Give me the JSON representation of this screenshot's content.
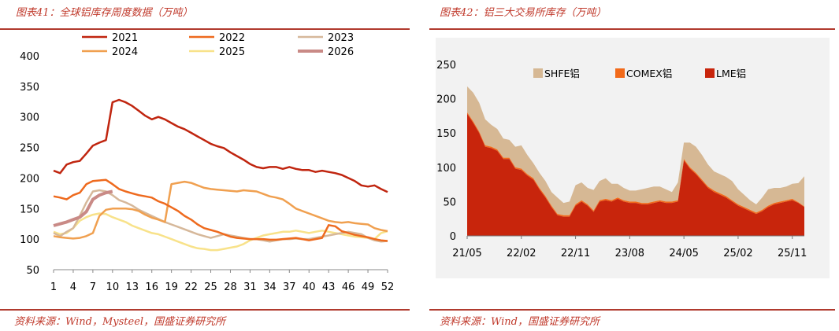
{
  "left": {
    "caption": "图表41：全球铝库存周度数据（万吨）",
    "source": "资料来源：Wind，Mysteel，国盛证券研究所"
  },
  "right": {
    "caption": "图表42：铝三大交易所库存（万吨）",
    "source": "资料来源：Wind，国盛证券研究所"
  },
  "colors": {
    "y2021": "#c0250f",
    "y2022": "#ee6a1e",
    "y2023": "#d6b89a",
    "y2024": "#f0a050",
    "y2025": "#f8e28a",
    "y2026": "#c98a86",
    "shfe": "#d6b894",
    "comex": "#f26a1a",
    "lme": "#c8250c",
    "rule": "#b03a2e",
    "caption": "#c0392b"
  },
  "chart_data": [
    {
      "type": "line",
      "xlabel": "",
      "ylabel": "",
      "ylim": [
        50,
        400
      ],
      "yticks": [
        "50",
        "100",
        "150",
        "200",
        "250",
        "300",
        "350",
        "400"
      ],
      "xticks": [
        "1",
        "4",
        "7",
        "10",
        "13",
        "16",
        "19",
        "22",
        "25",
        "28",
        "31",
        "34",
        "37",
        "40",
        "43",
        "46",
        "49",
        "52"
      ],
      "xlim": [
        1,
        52
      ],
      "legend": "top",
      "series": [
        {
          "name": "2021",
          "key": "y2021",
          "x": [
            1,
            2,
            3,
            4,
            5,
            6,
            7,
            8,
            9,
            10,
            11,
            12,
            13,
            14,
            15,
            16,
            17,
            18,
            19,
            20,
            21,
            22,
            23,
            24,
            25,
            26,
            27,
            28,
            29,
            30,
            31,
            32,
            33,
            34,
            35,
            36,
            37,
            38,
            39,
            40,
            41,
            42,
            43,
            44,
            45,
            46,
            47,
            48,
            49,
            50,
            51,
            52
          ],
          "values": [
            212,
            208,
            222,
            226,
            228,
            240,
            253,
            258,
            262,
            324,
            328,
            324,
            318,
            310,
            302,
            296,
            300,
            296,
            290,
            284,
            280,
            274,
            268,
            262,
            256,
            252,
            249,
            242,
            236,
            230,
            223,
            218,
            216,
            218,
            218,
            215,
            218,
            215,
            213,
            213,
            210,
            212,
            210,
            208,
            205,
            200,
            195,
            188,
            186,
            188,
            182,
            177
          ]
        },
        {
          "name": "2022",
          "key": "y2022",
          "x": [
            1,
            2,
            3,
            4,
            5,
            6,
            7,
            8,
            9,
            10,
            11,
            12,
            13,
            14,
            15,
            16,
            17,
            18,
            19,
            20,
            21,
            22,
            23,
            24,
            25,
            26,
            27,
            28,
            29,
            30,
            31,
            32,
            33,
            34,
            35,
            36,
            37,
            38,
            39,
            40,
            41,
            42,
            43,
            44,
            45,
            46,
            47,
            48,
            49,
            50,
            51,
            52
          ],
          "values": [
            170,
            168,
            165,
            172,
            176,
            190,
            195,
            196,
            197,
            190,
            182,
            178,
            175,
            172,
            170,
            168,
            162,
            158,
            152,
            146,
            138,
            132,
            124,
            118,
            115,
            112,
            108,
            104,
            102,
            101,
            100,
            100,
            100,
            99,
            99,
            100,
            101,
            102,
            100,
            98,
            100,
            102,
            123,
            121,
            113,
            110,
            107,
            105,
            103,
            100,
            98,
            97
          ]
        },
        {
          "name": "2023",
          "key": "y2023",
          "x": [
            1,
            2,
            3,
            4,
            5,
            6,
            7,
            8,
            9,
            10,
            11,
            12,
            13,
            14,
            15,
            16,
            17,
            18,
            19,
            20,
            21,
            22,
            23,
            24,
            25,
            26,
            27,
            28,
            29,
            30,
            31,
            32,
            33,
            34,
            35,
            36,
            37,
            38,
            39,
            40,
            41,
            42,
            43,
            44,
            45,
            46,
            47,
            48,
            49,
            50,
            51,
            52
          ],
          "values": [
            110,
            105,
            112,
            118,
            138,
            160,
            178,
            180,
            178,
            172,
            164,
            160,
            155,
            148,
            143,
            138,
            133,
            128,
            124,
            120,
            116,
            112,
            108,
            105,
            102,
            105,
            108,
            106,
            104,
            102,
            100,
            100,
            98,
            96,
            98,
            100,
            100,
            101,
            100,
            100,
            102,
            104,
            106,
            108,
            110,
            112,
            110,
            108,
            102,
            98,
            96,
            97
          ]
        },
        {
          "name": "2024",
          "key": "y2024",
          "x": [
            1,
            2,
            3,
            4,
            5,
            6,
            7,
            8,
            9,
            10,
            11,
            12,
            13,
            14,
            15,
            16,
            17,
            18,
            19,
            20,
            21,
            22,
            23,
            24,
            25,
            26,
            27,
            28,
            29,
            30,
            31,
            32,
            33,
            34,
            35,
            36,
            37,
            38,
            39,
            40,
            41,
            42,
            43,
            44,
            45,
            46,
            47,
            48,
            49,
            50,
            51,
            52
          ],
          "values": [
            105,
            103,
            102,
            101,
            102,
            105,
            110,
            138,
            148,
            150,
            150,
            150,
            149,
            146,
            140,
            135,
            132,
            128,
            190,
            192,
            194,
            192,
            188,
            184,
            182,
            181,
            180,
            179,
            178,
            180,
            179,
            178,
            174,
            170,
            168,
            165,
            158,
            150,
            146,
            142,
            138,
            134,
            130,
            128,
            127,
            128,
            126,
            125,
            124,
            118,
            115,
            113
          ]
        },
        {
          "name": "2025",
          "key": "y2025",
          "x": [
            1,
            2,
            3,
            4,
            5,
            6,
            7,
            8,
            9,
            10,
            11,
            12,
            13,
            14,
            15,
            16,
            17,
            18,
            19,
            20,
            21,
            22,
            23,
            24,
            25,
            26,
            27,
            28,
            29,
            30,
            31,
            32,
            33,
            34,
            35,
            36,
            37,
            38,
            39,
            40,
            41,
            42,
            43,
            44,
            45,
            46,
            47,
            48,
            49,
            50,
            51,
            52
          ],
          "values": [
            112,
            108,
            110,
            118,
            130,
            136,
            140,
            142,
            141,
            136,
            132,
            128,
            122,
            118,
            114,
            110,
            108,
            104,
            100,
            96,
            92,
            88,
            85,
            84,
            82,
            82,
            84,
            86,
            88,
            92,
            98,
            102,
            106,
            108,
            110,
            112,
            112,
            114,
            112,
            110,
            112,
            114,
            112,
            110,
            108,
            106,
            104,
            103,
            102,
            100,
            110,
            113
          ]
        },
        {
          "name": "2026",
          "key": "y2026",
          "x": [
            1,
            2,
            3,
            4,
            5,
            6,
            7,
            8,
            9,
            10
          ],
          "values": [
            122,
            125,
            128,
            132,
            136,
            145,
            165,
            172,
            176,
            178
          ]
        }
      ]
    },
    {
      "type": "area",
      "xlabel": "",
      "ylabel": "",
      "ylim": [
        0,
        250
      ],
      "yticks": [
        "0",
        "50",
        "100",
        "150",
        "200",
        "250"
      ],
      "xticks": [
        "21/05",
        "22/02",
        "22/11",
        "23/08",
        "24/05",
        "25/02",
        "25/11"
      ],
      "legend": "top",
      "x": [
        "21/05",
        "21/06",
        "21/07",
        "21/08",
        "21/09",
        "21/10",
        "21/11",
        "21/12",
        "22/01",
        "22/02",
        "22/03",
        "22/04",
        "22/05",
        "22/06",
        "22/07",
        "22/08",
        "22/09",
        "22/10",
        "22/11",
        "22/12",
        "23/01",
        "23/02",
        "23/03",
        "23/04",
        "23/05",
        "23/06",
        "23/07",
        "23/08",
        "23/09",
        "23/10",
        "23/11",
        "23/12",
        "24/01",
        "24/02",
        "24/03",
        "24/04",
        "24/05",
        "24/06",
        "24/07",
        "24/08",
        "24/09",
        "24/10",
        "24/11",
        "24/12",
        "25/01",
        "25/02",
        "25/03",
        "25/04",
        "25/05",
        "25/06",
        "25/07",
        "25/08",
        "25/09",
        "25/10",
        "25/11",
        "25/12",
        "26/01"
      ],
      "series": [
        {
          "name": "LME铝",
          "key": "lme",
          "values": [
            178,
            165,
            150,
            130,
            128,
            124,
            112,
            112,
            98,
            96,
            88,
            82,
            68,
            56,
            42,
            30,
            28,
            28,
            44,
            50,
            44,
            35,
            50,
            52,
            50,
            54,
            50,
            48,
            48,
            46,
            46,
            48,
            50,
            48,
            48,
            50,
            110,
            98,
            90,
            80,
            70,
            64,
            60,
            56,
            50,
            44,
            40,
            36,
            32,
            36,
            42,
            46,
            48,
            50,
            52,
            48,
            42
          ]
        },
        {
          "name": "COMEX铝",
          "key": "comex",
          "values": [
            2,
            2,
            2,
            2,
            2,
            2,
            2,
            2,
            2,
            2,
            2,
            2,
            2,
            2,
            2,
            2,
            2,
            2,
            2,
            2,
            2,
            2,
            2,
            2,
            2,
            2,
            2,
            2,
            2,
            2,
            2,
            2,
            2,
            2,
            2,
            2,
            2,
            2,
            2,
            2,
            2,
            2,
            2,
            2,
            2,
            2,
            2,
            2,
            2,
            2,
            2,
            2,
            2,
            2,
            2,
            1,
            1
          ]
        },
        {
          "name": "SHFE铝",
          "key": "shfe",
          "values": [
            38,
            42,
            42,
            38,
            32,
            30,
            28,
            26,
            30,
            34,
            28,
            22,
            22,
            22,
            20,
            24,
            18,
            20,
            28,
            26,
            24,
            30,
            28,
            30,
            24,
            20,
            18,
            16,
            16,
            20,
            22,
            22,
            20,
            18,
            14,
            26,
            24,
            36,
            38,
            36,
            32,
            28,
            28,
            28,
            28,
            22,
            18,
            14,
            12,
            18,
            24,
            22,
            20,
            20,
            22,
            28,
            44
          ]
        }
      ]
    }
  ]
}
